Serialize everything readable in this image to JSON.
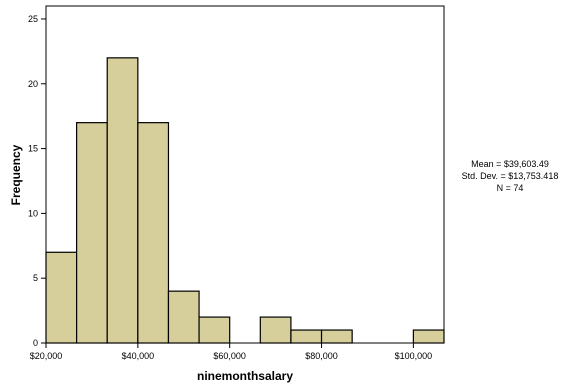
{
  "chart_data": {
    "type": "bar",
    "bins": [
      {
        "start": 20000,
        "end": 26667,
        "count": 7
      },
      {
        "start": 26667,
        "end": 33333,
        "count": 17
      },
      {
        "start": 33333,
        "end": 40000,
        "count": 22
      },
      {
        "start": 40000,
        "end": 46667,
        "count": 17
      },
      {
        "start": 46667,
        "end": 53333,
        "count": 4
      },
      {
        "start": 53333,
        "end": 60000,
        "count": 2
      },
      {
        "start": 60000,
        "end": 66667,
        "count": 0
      },
      {
        "start": 66667,
        "end": 73333,
        "count": 2
      },
      {
        "start": 73333,
        "end": 80000,
        "count": 1
      },
      {
        "start": 80000,
        "end": 86667,
        "count": 1
      },
      {
        "start": 86667,
        "end": 93333,
        "count": 0
      },
      {
        "start": 93333,
        "end": 100000,
        "count": 0
      },
      {
        "start": 100000,
        "end": 106667,
        "count": 1
      }
    ],
    "xlabel": "ninemonthsalary",
    "ylabel": "Frequency",
    "xlim": [
      20000,
      106667
    ],
    "ylim": [
      0,
      26
    ],
    "x_ticks": [
      {
        "value": 20000,
        "label": "$20,000"
      },
      {
        "value": 40000,
        "label": "$40,000"
      },
      {
        "value": 60000,
        "label": "$60,000"
      },
      {
        "value": 80000,
        "label": "$80,000"
      },
      {
        "value": 100000,
        "label": "$100,000"
      }
    ],
    "y_ticks": [
      0,
      5,
      10,
      15,
      20,
      25
    ],
    "bar_color": "#d6cf9b",
    "grid": false,
    "stats": {
      "mean": "Mean = $39,603.49",
      "std": "Std. Dev. = $13,753.418",
      "n": "N = 74"
    }
  }
}
